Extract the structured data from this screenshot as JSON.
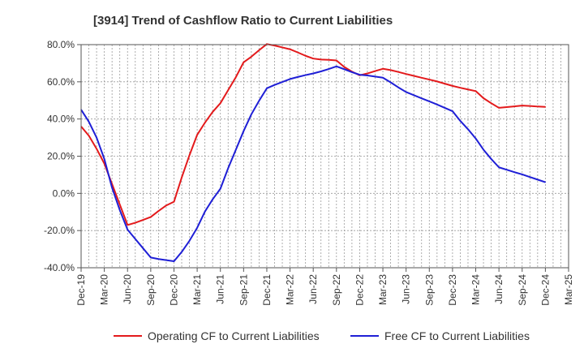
{
  "chart_data": {
    "type": "line",
    "title": "[3914]  Trend of Cashflow Ratio to Current Liabilities",
    "xlabel": "",
    "ylabel": "",
    "ylim": [
      -40,
      80
    ],
    "yticks": [
      "80.0%",
      "60.0%",
      "40.0%",
      "20.0%",
      "0.0%",
      "-20.0%",
      "-40.0%"
    ],
    "ytick_values": [
      80,
      60,
      40,
      20,
      0,
      -20,
      -40
    ],
    "xticks": [
      "Dec-19",
      "Mar-20",
      "Jun-20",
      "Sep-20",
      "Dec-20",
      "Mar-21",
      "Jun-21",
      "Sep-21",
      "Dec-21",
      "Mar-22",
      "Jun-22",
      "Sep-22",
      "Dec-22",
      "Mar-23",
      "Jun-23",
      "Sep-23",
      "Dec-23",
      "Mar-24",
      "Jun-24",
      "Sep-24",
      "Dec-24",
      "Mar-25"
    ],
    "grid": true,
    "legend_position": "bottom",
    "x_unit": "month-index from Dec-19 (3 per quarter)",
    "series": [
      {
        "name": "Operating CF to Current Liabilities",
        "color": "#e31a1c",
        "x": [
          "Dec-19",
          "Jan-20",
          "Feb-20",
          "Mar-20",
          "Apr-20",
          "May-20",
          "Jun-20",
          "Jul-20",
          "Aug-20",
          "Sep-20",
          "Oct-20",
          "Nov-20",
          "Dec-20",
          "Jan-21",
          "Feb-21",
          "Mar-21",
          "Apr-21",
          "May-21",
          "Jun-21",
          "Jul-21",
          "Aug-21",
          "Sep-21",
          "Oct-21",
          "Nov-21",
          "Dec-21",
          "Jan-22",
          "Feb-22",
          "Mar-22",
          "Apr-22",
          "May-22",
          "Jun-22",
          "Jul-22",
          "Aug-22",
          "Sep-22",
          "Oct-22",
          "Nov-22",
          "Dec-22",
          "Jan-23",
          "Feb-23",
          "Mar-23",
          "Apr-23",
          "May-23",
          "Jun-23",
          "Jul-23",
          "Aug-23",
          "Sep-23",
          "Oct-23",
          "Nov-23",
          "Dec-23",
          "Jan-24",
          "Feb-24",
          "Mar-24",
          "Apr-24",
          "May-24",
          "Jun-24",
          "Jul-24",
          "Aug-24",
          "Sep-24",
          "Oct-24",
          "Nov-24",
          "Dec-24"
        ],
        "y": [
          36.0,
          31.0,
          24.0,
          16.0,
          5.0,
          -6.0,
          -17.0,
          -15.8,
          -14.3,
          -12.7,
          -9.5,
          -6.5,
          -4.5,
          8.5,
          20.5,
          31.5,
          38.0,
          43.8,
          48.5,
          55.5,
          62.5,
          70.5,
          73.5,
          77.0,
          80.3,
          79.5,
          78.5,
          77.5,
          75.8,
          74.0,
          72.5,
          72.0,
          71.8,
          71.5,
          68.0,
          65.5,
          63.5,
          64.5,
          65.8,
          67.0,
          66.3,
          65.3,
          64.2,
          63.2,
          62.2,
          61.2,
          60.2,
          59.0,
          57.8,
          56.8,
          55.9,
          55.0,
          51.2,
          48.5,
          46.0,
          46.4,
          46.8,
          47.2,
          47.0,
          46.7,
          46.5
        ]
      },
      {
        "name": "Free CF to Current Liabilities",
        "color": "#1f1fd6",
        "x": [
          "Dec-19",
          "Jan-20",
          "Feb-20",
          "Mar-20",
          "Apr-20",
          "May-20",
          "Jun-20",
          "Jul-20",
          "Aug-20",
          "Sep-20",
          "Oct-20",
          "Nov-20",
          "Dec-20",
          "Jan-21",
          "Feb-21",
          "Mar-21",
          "Apr-21",
          "May-21",
          "Jun-21",
          "Jul-21",
          "Aug-21",
          "Sep-21",
          "Oct-21",
          "Nov-21",
          "Dec-21",
          "Jan-22",
          "Feb-22",
          "Mar-22",
          "Apr-22",
          "May-22",
          "Jun-22",
          "Jul-22",
          "Aug-22",
          "Sep-22",
          "Oct-22",
          "Nov-22",
          "Dec-22",
          "Jan-23",
          "Feb-23",
          "Mar-23",
          "Apr-23",
          "May-23",
          "Jun-23",
          "Jul-23",
          "Aug-23",
          "Sep-23",
          "Oct-23",
          "Nov-23",
          "Dec-23",
          "Jan-24",
          "Feb-24",
          "Mar-24",
          "Apr-24",
          "May-24",
          "Jun-24",
          "Jul-24",
          "Aug-24",
          "Sep-24",
          "Oct-24",
          "Nov-24",
          "Dec-24"
        ],
        "y": [
          45.0,
          38.5,
          30.0,
          18.5,
          3.0,
          -9.0,
          -19.5,
          -24.5,
          -29.5,
          -34.5,
          -35.3,
          -35.9,
          -36.5,
          -31.5,
          -25.5,
          -18.5,
          -9.8,
          -3.2,
          2.5,
          13.5,
          23.5,
          33.5,
          42.5,
          49.8,
          56.5,
          58.3,
          59.9,
          61.5,
          62.6,
          63.6,
          64.5,
          65.6,
          66.9,
          68.3,
          66.8,
          65.2,
          63.8,
          63.4,
          62.8,
          62.2,
          59.7,
          57.0,
          54.5,
          52.8,
          51.1,
          49.5,
          47.8,
          46.0,
          44.2,
          39.0,
          34.5,
          29.5,
          23.5,
          18.5,
          14.0,
          12.7,
          11.4,
          10.2,
          8.8,
          7.4,
          6.0
        ]
      }
    ]
  }
}
